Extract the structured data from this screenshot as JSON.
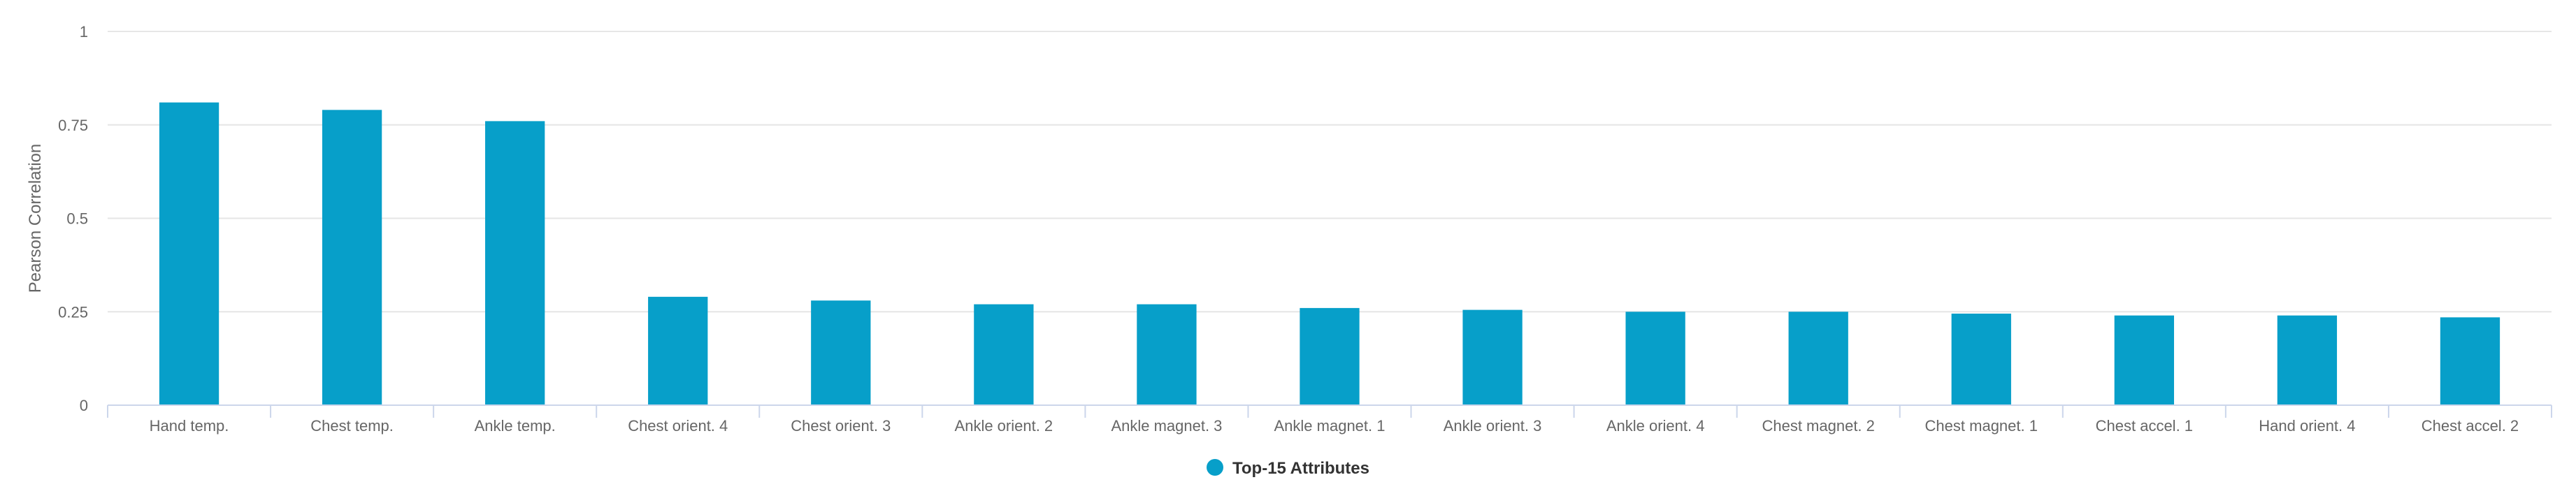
{
  "chart_data": {
    "type": "bar",
    "categories": [
      "Hand temp.",
      "Chest temp.",
      "Ankle temp.",
      "Chest orient. 4",
      "Chest orient. 3",
      "Ankle orient. 2",
      "Ankle magnet. 3",
      "Ankle magnet. 1",
      "Ankle orient. 3",
      "Ankle orient. 4",
      "Chest magnet. 2",
      "Chest magnet. 1",
      "Chest accel. 1",
      "Hand orient. 4",
      "Chest accel. 2"
    ],
    "series": [
      {
        "name": "Top-15 Attributes",
        "values": [
          0.81,
          0.79,
          0.76,
          0.29,
          0.28,
          0.27,
          0.27,
          0.26,
          0.255,
          0.25,
          0.25,
          0.245,
          0.24,
          0.24,
          0.235
        ],
        "color": "#079fc9"
      }
    ],
    "ylabel": "Pearson Correlation",
    "ylim": [
      0,
      1
    ],
    "yticks": [
      "0",
      "0.25",
      "0.5",
      "0.75",
      "1"
    ],
    "grid": true,
    "legend": "bottom-center"
  },
  "colors": {
    "bar": "#079fc9",
    "grid": "#e6e6e6",
    "axis": "#ccd6eb"
  }
}
